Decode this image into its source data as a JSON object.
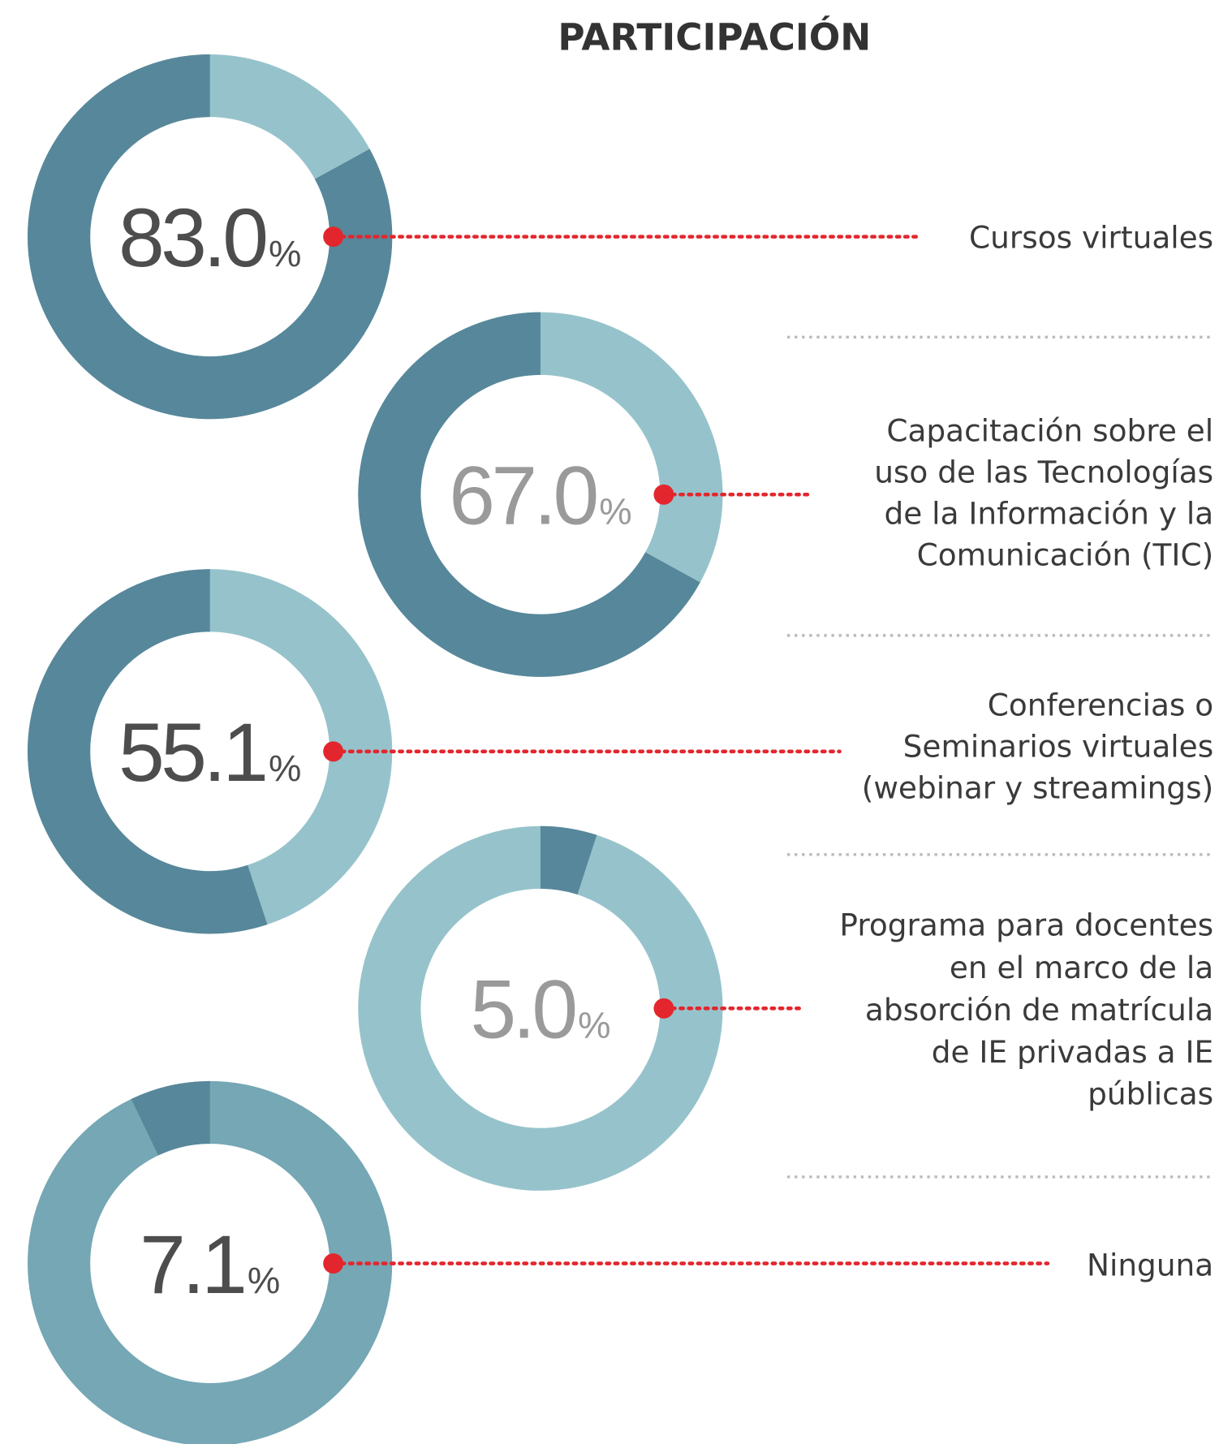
{
  "title": "PARTICIPACIÓN",
  "unit": "%",
  "chart_data": [
    {
      "type": "donut",
      "value": 83,
      "value_label": "83.0",
      "direction": "counterclockwise",
      "value_color": "#57879a",
      "rest_color": "#96c3cb",
      "number_color": "#4d4d4d",
      "label_lines": [
        "Cursos virtuales"
      ]
    },
    {
      "type": "donut",
      "value": 67,
      "value_label": "67.0",
      "direction": "counterclockwise",
      "value_color": "#57879a",
      "rest_color": "#96c3cb",
      "number_color": "#9a9a9a",
      "label_lines": [
        "Capacitación sobre el",
        "uso de las Tecnologías",
        "de la Información y la",
        "Comunicación (TIC)"
      ]
    },
    {
      "type": "donut",
      "value": 55.1,
      "value_label": "55.1",
      "direction": "counterclockwise",
      "value_color": "#57879a",
      "rest_color": "#96c3cb",
      "number_color": "#4d4d4d",
      "label_lines": [
        "Conferencias o",
        "Seminarios virtuales",
        "(webinar y streamings)"
      ]
    },
    {
      "type": "donut",
      "value": 5,
      "value_label": "5.0",
      "direction": "clockwise",
      "value_color": "#57879a",
      "rest_color": "#96c3cb",
      "number_color": "#9a9a9a",
      "label_lines": [
        "Programa para docentes",
        "en el marco de la",
        "absorción de matrícula",
        "de IE privadas a IE",
        "públicas"
      ]
    },
    {
      "type": "donut",
      "value": 7.1,
      "value_label": "7.1",
      "direction": "counterclockwise",
      "value_color": "#57879a",
      "rest_color": "#75a7b5",
      "number_color": "#4d4d4d",
      "label_lines": [
        "Ninguna"
      ]
    }
  ]
}
